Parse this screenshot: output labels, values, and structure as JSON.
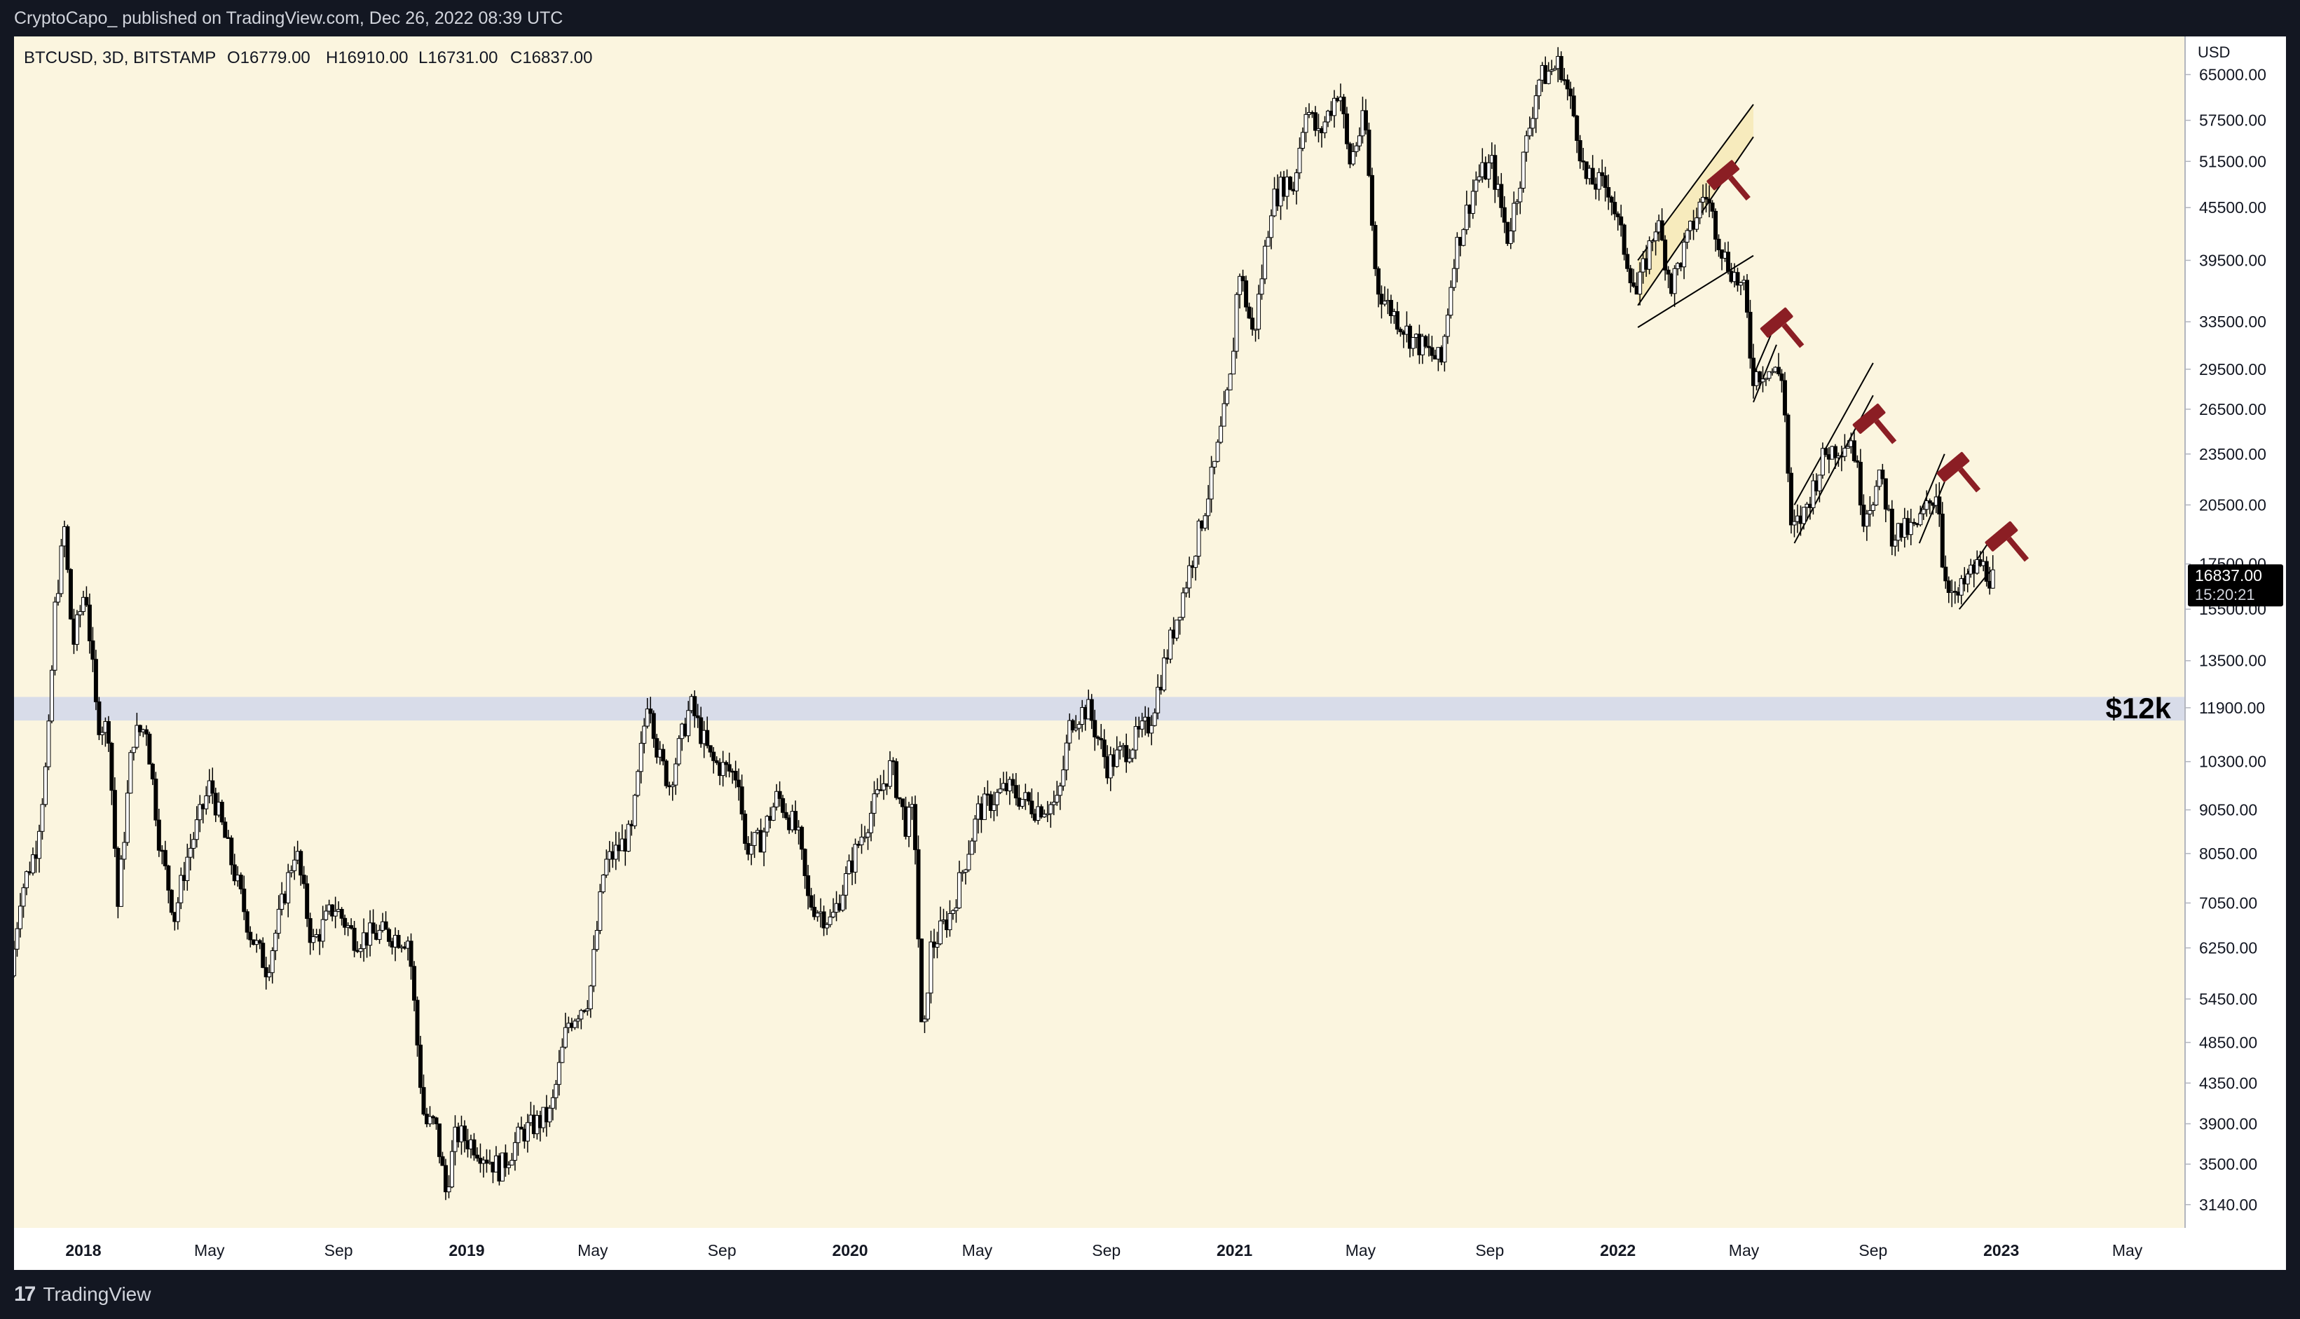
{
  "header": {
    "published_text": "CryptoCapo_ published on TradingView.com, Dec 26, 2022 08:39 UTC"
  },
  "footer": {
    "logo_glyph": "17",
    "brand": "TradingView"
  },
  "colors": {
    "plot_background": "#fbf5df",
    "support_band": "#d8dce9",
    "candle": "#000000",
    "hammer": "#8b1e24",
    "price_label_bg": "#000000"
  },
  "chart_data": {
    "type": "candlestick",
    "symbol_line": "BTCUSD, 3D, BITSTAMP",
    "ohlc_text": {
      "open": "O16779.00",
      "high": "H16910.00",
      "low": "L16731.00",
      "close": "C16837.00"
    },
    "currency_label": "USD",
    "y_scale": "log",
    "ylim": [
      2950,
      72000
    ],
    "xlim": [
      "2017-10-27",
      "2023-06-25"
    ],
    "y_ticks": [
      "65000.00",
      "57500.00",
      "51500.00",
      "45500.00",
      "39500.00",
      "33500.00",
      "29500.00",
      "26500.00",
      "23500.00",
      "20500.00",
      "17500.00",
      "15500.00",
      "13500.00",
      "11900.00",
      "10300.00",
      "9050.00",
      "8050.00",
      "7050.00",
      "6250.00",
      "5450.00",
      "4850.00",
      "4350.00",
      "3900.00",
      "3500.00",
      "3140.00"
    ],
    "x_ticks": [
      {
        "label": "2018",
        "date": "2018-01-01",
        "bold": true
      },
      {
        "label": "May",
        "date": "2018-05-01",
        "bold": false
      },
      {
        "label": "Sep",
        "date": "2018-09-01",
        "bold": false
      },
      {
        "label": "2019",
        "date": "2019-01-01",
        "bold": true
      },
      {
        "label": "May",
        "date": "2019-05-01",
        "bold": false
      },
      {
        "label": "Sep",
        "date": "2019-09-01",
        "bold": false
      },
      {
        "label": "2020",
        "date": "2020-01-01",
        "bold": true
      },
      {
        "label": "May",
        "date": "2020-05-01",
        "bold": false
      },
      {
        "label": "Sep",
        "date": "2020-09-01",
        "bold": false
      },
      {
        "label": "2021",
        "date": "2021-01-01",
        "bold": true
      },
      {
        "label": "May",
        "date": "2021-05-01",
        "bold": false
      },
      {
        "label": "Sep",
        "date": "2021-09-01",
        "bold": false
      },
      {
        "label": "2022",
        "date": "2022-01-01",
        "bold": true
      },
      {
        "label": "May",
        "date": "2022-05-01",
        "bold": false
      },
      {
        "label": "Sep",
        "date": "2022-09-01",
        "bold": false
      },
      {
        "label": "2023",
        "date": "2023-01-01",
        "bold": true
      },
      {
        "label": "May",
        "date": "2023-05-01",
        "bold": false
      }
    ],
    "price_path": [
      [
        "2017-10-27",
        5800
      ],
      [
        "2017-11-05",
        7200
      ],
      [
        "2017-11-20",
        8200
      ],
      [
        "2017-12-01",
        10500
      ],
      [
        "2017-12-08",
        15500
      ],
      [
        "2017-12-17",
        19200
      ],
      [
        "2017-12-25",
        14000
      ],
      [
        "2018-01-06",
        16500
      ],
      [
        "2018-01-17",
        11500
      ],
      [
        "2018-01-28",
        11200
      ],
      [
        "2018-02-06",
        7000
      ],
      [
        "2018-02-20",
        11000
      ],
      [
        "2018-03-05",
        11300
      ],
      [
        "2018-03-18",
        8200
      ],
      [
        "2018-04-01",
        6800
      ],
      [
        "2018-04-12",
        7900
      ],
      [
        "2018-05-05",
        9700
      ],
      [
        "2018-05-20",
        8300
      ],
      [
        "2018-06-12",
        6500
      ],
      [
        "2018-06-28",
        5900
      ],
      [
        "2018-07-25",
        8200
      ],
      [
        "2018-08-10",
        6300
      ],
      [
        "2018-08-31",
        7000
      ],
      [
        "2018-09-20",
        6400
      ],
      [
        "2018-10-15",
        6500
      ],
      [
        "2018-11-10",
        6400
      ],
      [
        "2018-11-20",
        4500
      ],
      [
        "2018-11-25",
        3900
      ],
      [
        "2018-12-05",
        3900
      ],
      [
        "2018-12-15",
        3250
      ],
      [
        "2018-12-25",
        3800
      ],
      [
        "2019-01-10",
        3700
      ],
      [
        "2019-02-05",
        3450
      ],
      [
        "2019-02-25",
        3800
      ],
      [
        "2019-03-25",
        4000
      ],
      [
        "2019-04-10",
        5100
      ],
      [
        "2019-05-01",
        5500
      ],
      [
        "2019-05-15",
        7800
      ],
      [
        "2019-06-10",
        8500
      ],
      [
        "2019-06-26",
        12500
      ],
      [
        "2019-07-05",
        10500
      ],
      [
        "2019-07-16",
        9700
      ],
      [
        "2019-08-05",
        12000
      ],
      [
        "2019-08-25",
        10300
      ],
      [
        "2019-09-20",
        9900
      ],
      [
        "2019-09-26",
        8200
      ],
      [
        "2019-10-10",
        8300
      ],
      [
        "2019-10-27",
        9400
      ],
      [
        "2019-11-15",
        8500
      ],
      [
        "2019-11-25",
        7100
      ],
      [
        "2019-12-17",
        6700
      ],
      [
        "2020-01-14",
        8400
      ],
      [
        "2020-02-12",
        10200
      ],
      [
        "2020-02-26",
        8700
      ],
      [
        "2020-03-05",
        9000
      ],
      [
        "2020-03-13",
        4600
      ],
      [
        "2020-03-20",
        6200
      ],
      [
        "2020-04-10",
        6900
      ],
      [
        "2020-05-05",
        9000
      ],
      [
        "2020-06-01",
        9600
      ],
      [
        "2020-06-28",
        9100
      ],
      [
        "2020-07-20",
        9200
      ],
      [
        "2020-08-01",
        11500
      ],
      [
        "2020-08-17",
        11900
      ],
      [
        "2020-09-05",
        10200
      ],
      [
        "2020-09-25",
        10700
      ],
      [
        "2020-10-15",
        11400
      ],
      [
        "2020-10-30",
        13500
      ],
      [
        "2020-11-15",
        16000
      ],
      [
        "2020-12-01",
        19000
      ],
      [
        "2020-12-17",
        23000
      ],
      [
        "2021-01-01",
        29000
      ],
      [
        "2021-01-08",
        39000
      ],
      [
        "2021-01-22",
        32000
      ],
      [
        "2021-02-08",
        46000
      ],
      [
        "2021-02-22",
        49000
      ],
      [
        "2021-03-01",
        48000
      ],
      [
        "2021-03-13",
        60000
      ],
      [
        "2021-03-25",
        55000
      ],
      [
        "2021-04-14",
        63000
      ],
      [
        "2021-04-23",
        51000
      ],
      [
        "2021-05-08",
        58000
      ],
      [
        "2021-05-19",
        37000
      ],
      [
        "2021-05-30",
        35000
      ],
      [
        "2021-06-22",
        32000
      ],
      [
        "2021-07-20",
        30000
      ],
      [
        "2021-08-01",
        40000
      ],
      [
        "2021-08-22",
        49000
      ],
      [
        "2021-09-06",
        51000
      ],
      [
        "2021-09-21",
        42000
      ],
      [
        "2021-10-01",
        48000
      ],
      [
        "2021-10-20",
        64000
      ],
      [
        "2021-11-10",
        67000
      ],
      [
        "2021-11-25",
        57000
      ],
      [
        "2021-12-04",
        49000
      ],
      [
        "2021-12-27",
        48000
      ],
      [
        "2022-01-05",
        43000
      ],
      [
        "2022-01-22",
        36000
      ],
      [
        "2022-02-10",
        44000
      ],
      [
        "2022-02-24",
        37000
      ],
      [
        "2022-03-28",
        47500
      ],
      [
        "2022-04-15",
        40000
      ],
      [
        "2022-05-05",
        36000
      ],
      [
        "2022-05-12",
        29000
      ],
      [
        "2022-05-25",
        29500
      ],
      [
        "2022-06-10",
        29000
      ],
      [
        "2022-06-18",
        19000
      ],
      [
        "2022-06-30",
        20000
      ],
      [
        "2022-07-20",
        23500
      ],
      [
        "2022-08-15",
        24500
      ],
      [
        "2022-08-26",
        20000
      ],
      [
        "2022-09-12",
        22000
      ],
      [
        "2022-09-22",
        19000
      ],
      [
        "2022-10-15",
        19200
      ],
      [
        "2022-11-05",
        21500
      ],
      [
        "2022-11-09",
        17500
      ],
      [
        "2022-11-21",
        15800
      ],
      [
        "2022-12-05",
        17000
      ],
      [
        "2022-12-15",
        17500
      ],
      [
        "2022-12-26",
        16837
      ]
    ],
    "support_zone": {
      "low": 11500,
      "high": 12250,
      "label": "$12k"
    },
    "channels": [
      {
        "lines": [
          [
            [
              "2022-01-20",
              35000
            ],
            [
              "2022-05-10",
              55000
            ]
          ],
          [
            [
              "2022-01-20",
              39500
            ],
            [
              "2022-05-10",
              60000
            ]
          ],
          [
            [
              "2022-01-20",
              33000
            ],
            [
              "2022-05-10",
              40000
            ]
          ]
        ],
        "shaded": true
      },
      {
        "lines": [
          [
            [
              "2022-05-10",
              27000
            ],
            [
              "2022-06-01",
              31500
            ]
          ],
          [
            [
              "2022-05-10",
              29000
            ],
            [
              "2022-06-01",
              33500
            ]
          ]
        ],
        "shaded": false
      },
      {
        "lines": [
          [
            [
              "2022-06-18",
              18500
            ],
            [
              "2022-09-01",
              27500
            ]
          ],
          [
            [
              "2022-06-18",
              20500
            ],
            [
              "2022-09-01",
              30000
            ]
          ]
        ],
        "shaded": false
      },
      {
        "lines": [
          [
            [
              "2022-10-15",
              18500
            ],
            [
              "2022-11-08",
              21800
            ]
          ],
          [
            [
              "2022-10-15",
              20000
            ],
            [
              "2022-11-08",
              23500
            ]
          ]
        ],
        "shaded": false
      },
      {
        "lines": [
          [
            [
              "2022-11-22",
              15500
            ],
            [
              "2022-12-22",
              17200
            ]
          ],
          [
            [
              "2022-11-22",
              16500
            ],
            [
              "2022-12-22",
              18700
            ]
          ]
        ],
        "shaded": false
      }
    ],
    "hammers": [
      {
        "date": "2022-04-15",
        "price": 49000
      },
      {
        "date": "2022-06-05",
        "price": 33000
      },
      {
        "date": "2022-09-01",
        "price": 25500
      },
      {
        "date": "2022-11-20",
        "price": 22400
      },
      {
        "date": "2023-01-05",
        "price": 18600
      }
    ],
    "last_price": {
      "value": "16837.00",
      "countdown": "15:20:21"
    }
  }
}
